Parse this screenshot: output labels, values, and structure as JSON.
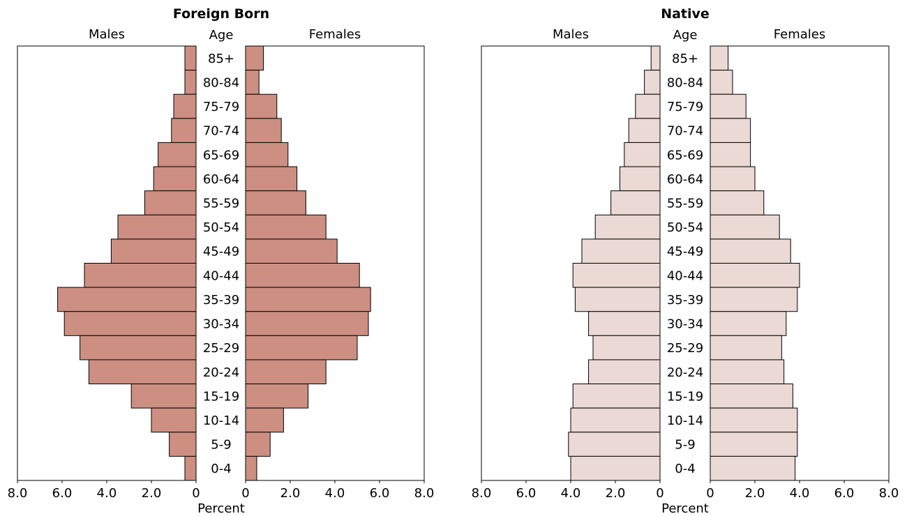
{
  "axis_label": "Percent",
  "age_header": "Age",
  "males_label": "Males",
  "females_label": "Females",
  "chart_data": [
    {
      "type": "bar",
      "title": "Foreign Born",
      "xlabel": "Percent",
      "xlim": [
        0,
        8.0
      ],
      "x_ticks": [
        "8.0",
        "6.0",
        "4.0",
        "2.0",
        "0",
        "0",
        "2.0",
        "4.0",
        "6.0",
        "8.0"
      ],
      "categories": [
        "85+",
        "80-84",
        "75-79",
        "70-74",
        "65-69",
        "60-64",
        "55-59",
        "50-54",
        "45-49",
        "40-44",
        "35-39",
        "30-34",
        "25-29",
        "20-24",
        "15-19",
        "10-14",
        "5-9",
        "0-4"
      ],
      "color": "#cc8f82",
      "series": [
        {
          "name": "Males",
          "values": [
            0.5,
            0.5,
            1.0,
            1.1,
            1.7,
            1.9,
            2.3,
            3.5,
            3.8,
            5.0,
            6.2,
            5.9,
            5.2,
            4.8,
            2.9,
            2.0,
            1.2,
            0.5
          ]
        },
        {
          "name": "Females",
          "values": [
            0.8,
            0.6,
            1.4,
            1.6,
            1.9,
            2.3,
            2.7,
            3.6,
            4.1,
            5.1,
            5.6,
            5.5,
            5.0,
            3.6,
            2.8,
            1.7,
            1.1,
            0.5
          ]
        }
      ]
    },
    {
      "type": "bar",
      "title": "Native",
      "xlabel": "Percent",
      "xlim": [
        0,
        8.0
      ],
      "x_ticks": [
        "8.0",
        "6.0",
        "4.0",
        "2.0",
        "0",
        "0",
        "2.0",
        "4.0",
        "6.0",
        "8.0"
      ],
      "categories": [
        "85+",
        "80-84",
        "75-79",
        "70-74",
        "65-69",
        "60-64",
        "55-59",
        "50-54",
        "45-49",
        "40-44",
        "35-39",
        "30-34",
        "25-29",
        "20-24",
        "15-19",
        "10-14",
        "5-9",
        "0-4"
      ],
      "color": "#ead9d4",
      "series": [
        {
          "name": "Males",
          "values": [
            0.4,
            0.7,
            1.1,
            1.4,
            1.6,
            1.8,
            2.2,
            2.9,
            3.5,
            3.9,
            3.8,
            3.2,
            3.0,
            3.2,
            3.9,
            4.0,
            4.1,
            4.0
          ]
        },
        {
          "name": "Females",
          "values": [
            0.8,
            1.0,
            1.6,
            1.8,
            1.8,
            2.0,
            2.4,
            3.1,
            3.6,
            4.0,
            3.9,
            3.4,
            3.2,
            3.3,
            3.7,
            3.9,
            3.9,
            3.8
          ]
        }
      ]
    }
  ]
}
